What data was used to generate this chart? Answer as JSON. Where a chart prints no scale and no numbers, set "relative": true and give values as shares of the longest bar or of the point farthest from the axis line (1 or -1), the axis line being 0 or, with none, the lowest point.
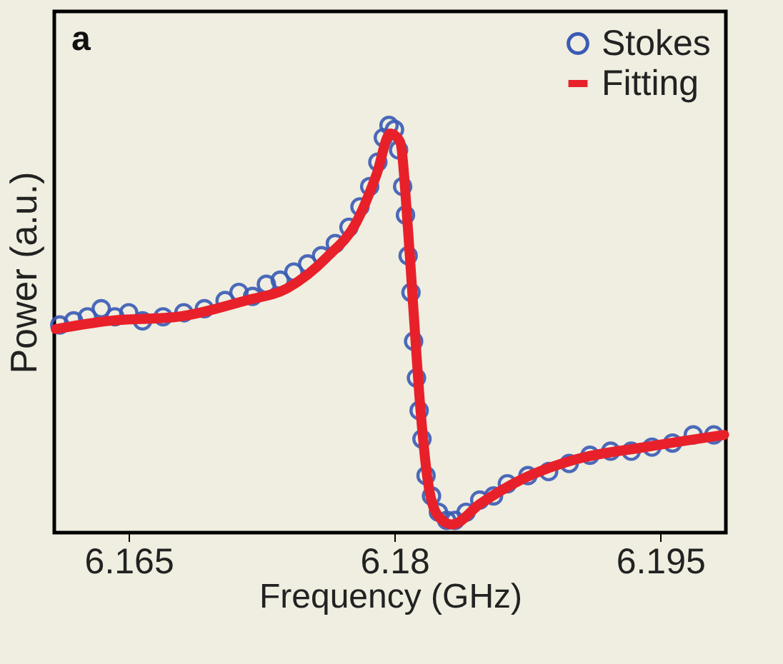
{
  "chart_data": {
    "type": "line",
    "xlabel": "Frequency (GHz)",
    "ylabel": "Power (a.u.)",
    "annotations": [
      "a"
    ],
    "relative": true,
    "xlim": [
      6.1608,
      6.1987
    ],
    "xticks": [
      6.165,
      6.18,
      6.195
    ],
    "tick_labels": "x",
    "legend": "top right",
    "series": [
      {
        "name": "Stokes",
        "type": "scatter",
        "marker": "circle",
        "color": "#3b5bb5",
        "x": [
          6.16111,
          6.16189,
          6.16267,
          6.16345,
          6.16422,
          6.165,
          6.16578,
          6.16694,
          6.16811,
          6.16927,
          6.17044,
          6.17122,
          6.17199,
          6.17277,
          6.17355,
          6.17432,
          6.1751,
          6.17588,
          6.17666,
          6.17743,
          6.17805,
          6.1786,
          6.17906,
          6.17937,
          6.17969,
          6.18,
          6.18023,
          6.18046,
          6.18062,
          6.18077,
          6.18093,
          6.18108,
          6.18124,
          6.18139,
          6.18155,
          6.18178,
          6.18209,
          6.18248,
          6.18295,
          6.18341,
          6.18404,
          6.18481,
          6.18559,
          6.18637,
          6.18753,
          6.1887,
          6.18986,
          6.19103,
          6.1922,
          6.19336,
          6.19453,
          6.19569,
          6.19686,
          6.19802
        ],
        "values": [
          0.51,
          0.52,
          0.53,
          0.55,
          0.53,
          0.54,
          0.52,
          0.53,
          0.54,
          0.55,
          0.57,
          0.59,
          0.58,
          0.61,
          0.62,
          0.64,
          0.66,
          0.68,
          0.71,
          0.75,
          0.8,
          0.85,
          0.91,
          0.97,
          1.0,
          0.99,
          0.94,
          0.85,
          0.78,
          0.68,
          0.59,
          0.47,
          0.38,
          0.3,
          0.23,
          0.14,
          0.09,
          0.05,
          0.03,
          0.03,
          0.05,
          0.08,
          0.09,
          0.12,
          0.14,
          0.15,
          0.17,
          0.19,
          0.2,
          0.2,
          0.21,
          0.22,
          0.24,
          0.24
        ]
      },
      {
        "name": "Fitting",
        "color": "#e8202a",
        "x": [
          6.16088,
          6.16383,
          6.16772,
          6.1716,
          6.17394,
          6.17627,
          6.17782,
          6.17899,
          6.17976,
          6.18031,
          6.18077,
          6.18108,
          6.18147,
          6.18194,
          6.18248,
          6.18326,
          6.18481,
          6.18714,
          6.19025,
          6.19414,
          6.1986
        ],
        "values": [
          0.5,
          0.52,
          0.53,
          0.57,
          0.6,
          0.68,
          0.76,
          0.88,
          0.98,
          0.96,
          0.74,
          0.54,
          0.3,
          0.11,
          0.04,
          0.02,
          0.07,
          0.13,
          0.18,
          0.21,
          0.24
        ]
      }
    ]
  }
}
